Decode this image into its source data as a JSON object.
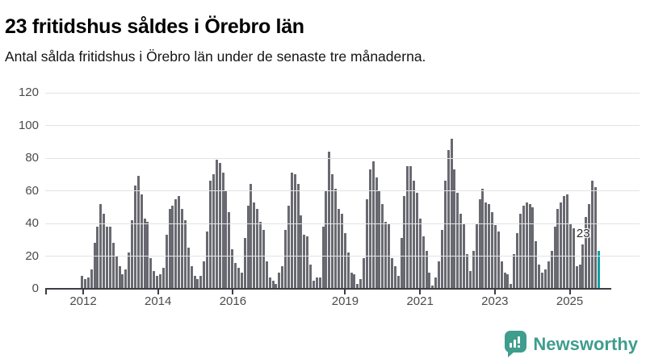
{
  "header": {
    "title": "23 fritidshus såldes i Örebro län",
    "subtitle": "Antal sålda fritidshus i Örebro län under de senaste tre månaderna."
  },
  "annotation": {
    "label": "23"
  },
  "branding": {
    "logo_text": "Newsworthy",
    "color": "#3f9d8d"
  },
  "colors": {
    "bar": "#696971",
    "highlight": "#14a0a2",
    "axis": "#3d3d43",
    "grid": "#e3e3e6"
  },
  "chart_data": {
    "type": "bar",
    "title": "23 fritidshus såldes i Örebro län",
    "subtitle": "Antal sålda fritidshus i Örebro län under de senaste tre månaderna.",
    "x_domain": "monthly, 2012-01 to 2025-10",
    "start_month": "2012-01",
    "end_month": "2025-10",
    "x_tick_years": [
      2012,
      2014,
      2016,
      2019,
      2021,
      2023,
      2025
    ],
    "y_ticks": [
      0,
      20,
      40,
      60,
      80,
      100,
      120
    ],
    "ylim": [
      0,
      120
    ],
    "grid": true,
    "legend": false,
    "highlight_last_value": 23,
    "values": [
      8,
      6,
      7,
      12,
      28,
      38,
      52,
      46,
      38,
      38,
      28,
      20,
      14,
      9,
      12,
      22,
      42,
      63,
      69,
      58,
      43,
      41,
      19,
      11,
      8,
      9,
      13,
      33,
      49,
      51,
      55,
      57,
      49,
      42,
      25,
      14,
      8,
      6,
      8,
      17,
      35,
      66,
      70,
      79,
      77,
      71,
      60,
      47,
      24,
      16,
      13,
      10,
      31,
      51,
      64,
      53,
      49,
      41,
      36,
      17,
      7,
      5,
      3,
      10,
      14,
      36,
      51,
      71,
      70,
      64,
      45,
      33,
      32,
      15,
      5,
      7,
      7,
      38,
      60,
      84,
      70,
      61,
      49,
      46,
      34,
      22,
      10,
      9,
      3,
      6,
      19,
      55,
      73,
      78,
      68,
      60,
      52,
      41,
      40,
      19,
      14,
      8,
      31,
      57,
      75,
      75,
      66,
      59,
      43,
      32,
      23,
      10,
      2,
      7,
      17,
      36,
      66,
      85,
      92,
      73,
      59,
      46,
      40,
      21,
      11,
      23,
      40,
      55,
      61,
      53,
      52,
      47,
      39,
      35,
      17,
      10,
      9,
      3,
      21,
      34,
      46,
      51,
      53,
      52,
      50,
      29,
      15,
      10,
      12,
      17,
      23,
      38,
      49,
      53,
      57,
      58,
      40,
      37,
      14,
      15,
      27,
      44,
      52,
      66,
      62,
      23
    ]
  }
}
